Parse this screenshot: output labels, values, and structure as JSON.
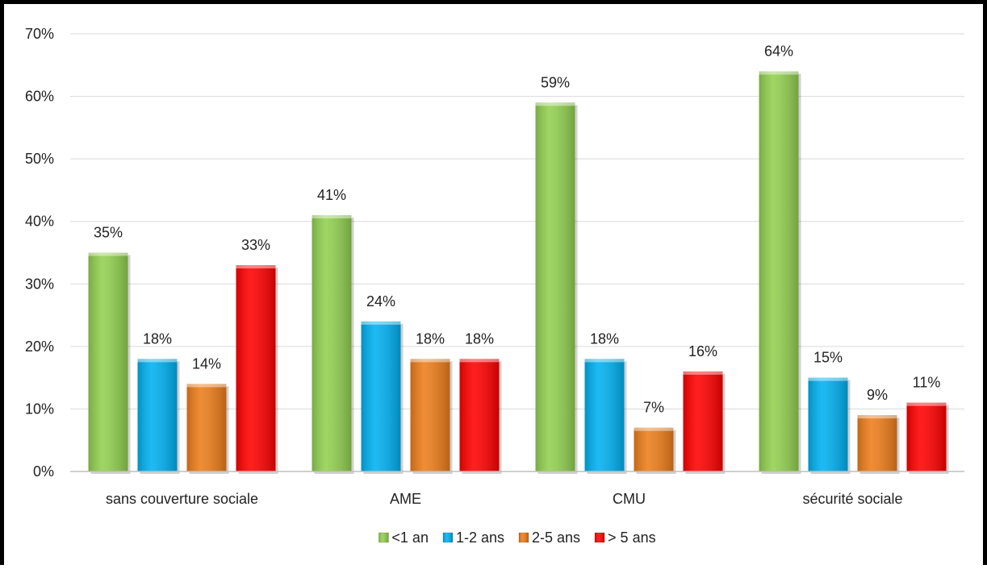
{
  "chart_data": {
    "type": "bar",
    "title": "",
    "xlabel": "",
    "ylabel": "",
    "ylim": [
      0,
      70
    ],
    "yticks": [
      "0%",
      "10%",
      "20%",
      "30%",
      "40%",
      "50%",
      "60%",
      "70%"
    ],
    "grid": true,
    "legend_position": "bottom",
    "categories": [
      "sans couverture sociale",
      "AME",
      "CMU",
      "sécurité sociale"
    ],
    "series": [
      {
        "name": "<1 an",
        "color": "#92D050",
        "values": [
          35,
          41,
          59,
          64
        ],
        "labels": [
          "35%",
          "41%",
          "59%",
          "64%"
        ]
      },
      {
        "name": "1-2 ans",
        "color": "#00B0F0",
        "values": [
          18,
          24,
          18,
          15
        ],
        "labels": [
          "18%",
          "24%",
          "18%",
          "15%"
        ]
      },
      {
        "name": "2-5 ans",
        "color": "#ED7D1A",
        "values": [
          14,
          18,
          7,
          9
        ],
        "labels": [
          "14%",
          "18%",
          "7%",
          "9%"
        ]
      },
      {
        "name": "> 5 ans",
        "color": "#FF0000",
        "values": [
          33,
          18,
          16,
          11
        ],
        "labels": [
          "33%",
          "18%",
          "16%",
          "11%"
        ]
      }
    ]
  }
}
